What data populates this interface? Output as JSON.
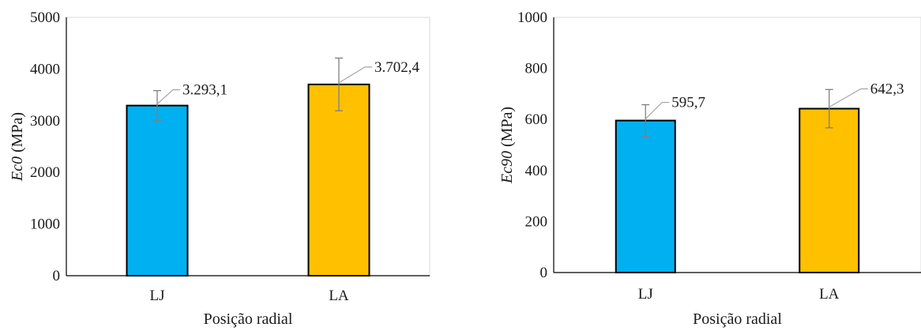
{
  "chart_data": [
    {
      "type": "bar",
      "categories": [
        "LJ",
        "LA"
      ],
      "values": [
        3293.1,
        3702.4
      ],
      "errors": [
        290,
        510
      ],
      "data_labels": [
        "3.293,1",
        "3.702,4"
      ],
      "colors": [
        "#00B0F0",
        "#FFC000"
      ],
      "ylabel_italic": "Ec0",
      "ylabel_unit": " (MPa)",
      "xlabel": "Posição radial",
      "ylim": [
        0,
        5000
      ],
      "yticks": [
        0,
        1000,
        2000,
        3000,
        4000,
        5000
      ],
      "grid": false,
      "legend": "none"
    },
    {
      "type": "bar",
      "categories": [
        "LJ",
        "LA"
      ],
      "values": [
        595.7,
        642.3
      ],
      "errors": [
        62,
        75
      ],
      "data_labels": [
        "595,7",
        "642,3"
      ],
      "colors": [
        "#00B0F0",
        "#FFC000"
      ],
      "ylabel_italic": "Ec90",
      "ylabel_unit": " (MPa)",
      "xlabel": "Posição radial",
      "ylim": [
        0,
        1000
      ],
      "yticks": [
        0,
        200,
        400,
        600,
        800,
        1000
      ],
      "grid": false,
      "legend": "none"
    }
  ]
}
